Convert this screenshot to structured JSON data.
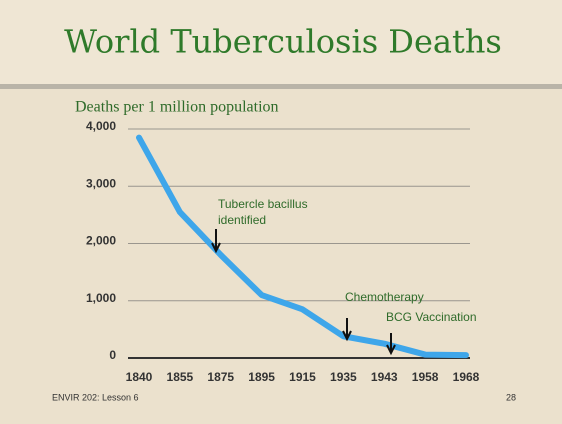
{
  "title": "World Tuberculosis Deaths",
  "chart_data": {
    "type": "line",
    "ylabel": "Deaths per 1 million population",
    "categories": [
      "1840",
      "1855",
      "1875",
      "1895",
      "1915",
      "1935",
      "1943",
      "1958",
      "1968"
    ],
    "values": [
      3850,
      2550,
      1800,
      1100,
      850,
      380,
      250,
      60,
      50
    ],
    "color": "#3ea6ea",
    "ylim": [
      0,
      4000
    ],
    "yticks": [
      0,
      {
        "value": 1000,
        "label": "1,000"
      },
      {
        "value": 2000,
        "label": "2,000"
      },
      {
        "value": 3000,
        "label": "3,000"
      },
      {
        "value": 4000,
        "label": "4,000"
      }
    ],
    "grid": true,
    "annotations": [
      [
        "Tubercle bacillus",
        "identified"
      ],
      [
        "Chemotherapy"
      ],
      [
        "BCG Vaccination"
      ]
    ]
  },
  "footer": {
    "left": "ENVIR 202: Lesson 6",
    "right": "28"
  }
}
